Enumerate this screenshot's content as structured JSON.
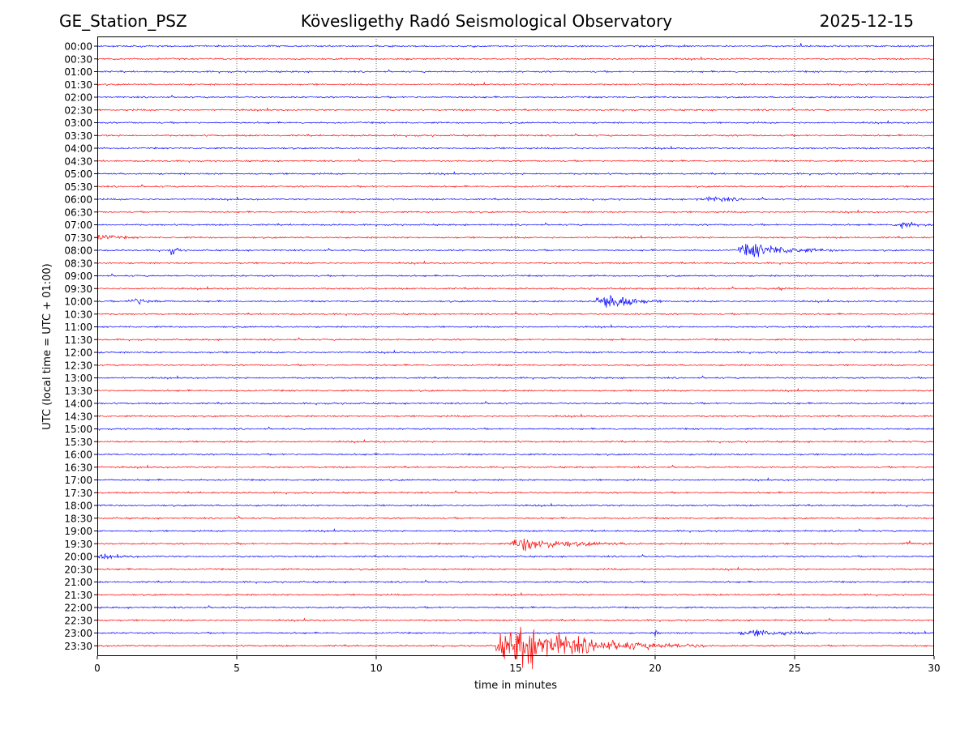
{
  "header": {
    "station": "GE_Station_PSZ",
    "title": "Kövesligethy Radó Seismological Observatory",
    "date": "2025-12-15"
  },
  "chart_data": {
    "type": "line",
    "title": "Kövesligethy Radó Seismological Observatory",
    "xlabel": "time in minutes",
    "ylabel": "UTC (local time = UTC + 01:00)",
    "xlim": [
      0,
      30
    ],
    "xticks": [
      0,
      5,
      10,
      15,
      20,
      25,
      30
    ],
    "xtick_labels": [
      "0",
      "5",
      "10",
      "15",
      "20",
      "25",
      "30"
    ],
    "vertical_gridlines": [
      5,
      10,
      15,
      20,
      25
    ],
    "grid": true,
    "trace_colors": [
      "#0000ff",
      "#ff0000"
    ],
    "rows": [
      "00:00",
      "00:30",
      "01:00",
      "01:30",
      "02:00",
      "02:30",
      "03:00",
      "03:30",
      "04:00",
      "04:30",
      "05:00",
      "05:30",
      "06:00",
      "06:30",
      "07:00",
      "07:30",
      "08:00",
      "08:30",
      "09:00",
      "09:30",
      "10:00",
      "10:30",
      "11:00",
      "11:30",
      "12:00",
      "12:30",
      "13:00",
      "13:30",
      "14:00",
      "14:30",
      "15:00",
      "15:30",
      "16:00",
      "16:30",
      "17:00",
      "17:30",
      "18:00",
      "18:30",
      "19:00",
      "19:30",
      "20:00",
      "20:30",
      "21:00",
      "21:30",
      "22:00",
      "22:30",
      "23:00",
      "23:30"
    ],
    "events": [
      {
        "row": "06:00",
        "start": 21.5,
        "peak": 22.3,
        "end": 24.0,
        "amp": 0.22
      },
      {
        "row": "07:00",
        "start": 28.6,
        "peak": 28.7,
        "end": 30.0,
        "amp": 0.6
      },
      {
        "row": "07:30",
        "start": 0.0,
        "peak": 0.1,
        "end": 1.6,
        "amp": 0.3
      },
      {
        "row": "08:00",
        "start": 2.6,
        "peak": 2.75,
        "end": 3.1,
        "amp": 0.5
      },
      {
        "row": "08:00",
        "start": 23.0,
        "peak": 23.5,
        "end": 27.0,
        "amp": 0.75
      },
      {
        "row": "09:30",
        "start": 24.3,
        "peak": 24.5,
        "end": 24.8,
        "amp": 0.25
      },
      {
        "row": "10:00",
        "start": 1.1,
        "peak": 1.4,
        "end": 2.8,
        "amp": 0.35
      },
      {
        "row": "10:00",
        "start": 17.9,
        "peak": 18.5,
        "end": 20.2,
        "amp": 1.1
      },
      {
        "row": "19:30",
        "start": 14.8,
        "peak": 15.3,
        "end": 19.5,
        "amp": 0.7
      },
      {
        "row": "19:30",
        "start": 28.9,
        "peak": 29.0,
        "end": 30.0,
        "amp": 0.25
      },
      {
        "row": "20:00",
        "start": 0.0,
        "peak": 0.3,
        "end": 1.8,
        "amp": 0.2
      },
      {
        "row": "23:00",
        "start": 19.9,
        "peak": 20.0,
        "end": 20.3,
        "amp": 0.25
      },
      {
        "row": "23:00",
        "start": 23.0,
        "peak": 23.8,
        "end": 26.5,
        "amp": 0.3
      },
      {
        "row": "23:30",
        "start": 14.3,
        "peak": 15.3,
        "end": 21.8,
        "amp": 2.1
      }
    ]
  }
}
